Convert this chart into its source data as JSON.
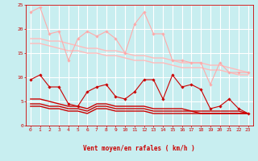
{
  "x": [
    0,
    1,
    2,
    3,
    4,
    5,
    6,
    7,
    8,
    9,
    10,
    11,
    12,
    13,
    14,
    15,
    16,
    17,
    18,
    19,
    20,
    21,
    22,
    23
  ],
  "xlabel": "Vent moyen/en rafales ( km/h )",
  "ylim": [
    0,
    25
  ],
  "yticks": [
    0,
    5,
    10,
    15,
    20,
    25
  ],
  "background_color": "#c8eef0",
  "grid_color": "#ffffff",
  "line_color_dark_red": "#cc0000",
  "series": [
    {
      "y": [
        23.5,
        24.5,
        19.0,
        19.5,
        13.5,
        18.0,
        19.5,
        18.5,
        19.5,
        18.0,
        15.0,
        21.0,
        23.5,
        19.0,
        19.0,
        13.5,
        13.5,
        13.0,
        13.0,
        8.5,
        13.0,
        11.0,
        11.0,
        11.0
      ],
      "color": "#ffaaaa",
      "lw": 0.8,
      "marker": "D",
      "ms": 1.8,
      "zorder": 4
    },
    {
      "y": [
        18.0,
        18.0,
        17.5,
        17.5,
        17.0,
        16.5,
        16.0,
        16.0,
        15.5,
        15.5,
        15.0,
        14.5,
        14.5,
        14.0,
        14.0,
        13.5,
        13.0,
        13.0,
        13.0,
        12.5,
        12.5,
        12.0,
        11.5,
        11.0
      ],
      "color": "#ffbbbb",
      "lw": 1.0,
      "marker": null,
      "ms": 0,
      "zorder": 2
    },
    {
      "y": [
        17.0,
        17.0,
        16.5,
        16.0,
        15.5,
        15.5,
        15.0,
        15.0,
        14.5,
        14.5,
        14.0,
        13.5,
        13.5,
        13.0,
        13.0,
        12.5,
        12.0,
        12.0,
        12.0,
        11.5,
        11.5,
        11.0,
        10.5,
        10.5
      ],
      "color": "#ffbbbb",
      "lw": 1.0,
      "marker": null,
      "ms": 0,
      "zorder": 2
    },
    {
      "y": [
        9.5,
        10.5,
        8.0,
        8.0,
        4.5,
        4.0,
        7.0,
        8.0,
        8.5,
        6.0,
        5.5,
        7.0,
        9.5,
        9.5,
        5.5,
        10.5,
        8.0,
        8.5,
        7.5,
        3.5,
        4.0,
        5.5,
        3.5,
        2.5
      ],
      "color": "#cc0000",
      "lw": 0.8,
      "marker": "D",
      "ms": 1.8,
      "zorder": 5
    },
    {
      "y": [
        5.5,
        5.5,
        5.0,
        4.5,
        4.0,
        4.0,
        3.5,
        4.5,
        4.5,
        4.0,
        4.0,
        4.0,
        4.0,
        3.5,
        3.5,
        3.5,
        3.5,
        3.0,
        3.0,
        3.0,
        3.0,
        3.0,
        3.0,
        2.5
      ],
      "color": "#cc0000",
      "lw": 1.0,
      "marker": null,
      "ms": 0,
      "zorder": 3
    },
    {
      "y": [
        4.5,
        4.5,
        4.0,
        4.0,
        3.5,
        3.5,
        3.0,
        4.0,
        4.0,
        3.5,
        3.5,
        3.5,
        3.5,
        3.0,
        3.0,
        3.0,
        3.0,
        3.0,
        2.5,
        2.5,
        2.5,
        2.5,
        2.5,
        2.5
      ],
      "color": "#cc0000",
      "lw": 1.0,
      "marker": null,
      "ms": 0,
      "zorder": 3
    },
    {
      "y": [
        4.0,
        4.0,
        3.5,
        3.5,
        3.0,
        3.0,
        2.5,
        3.5,
        3.5,
        3.0,
        3.0,
        3.0,
        3.0,
        2.5,
        2.5,
        2.5,
        2.5,
        2.5,
        2.5,
        2.5,
        2.5,
        2.5,
        2.5,
        2.5
      ],
      "color": "#cc0000",
      "lw": 1.0,
      "marker": null,
      "ms": 0,
      "zorder": 3
    }
  ],
  "wind_directions": [
    "→",
    "↘",
    "↗",
    "→",
    "↘",
    "↙",
    "→",
    "↗",
    "→",
    "↗",
    "→",
    "↗",
    "↗",
    "↗",
    "↗",
    "↙",
    "↘",
    "↙",
    "→",
    "↗",
    "↑",
    "↗",
    "↗",
    "↘"
  ]
}
